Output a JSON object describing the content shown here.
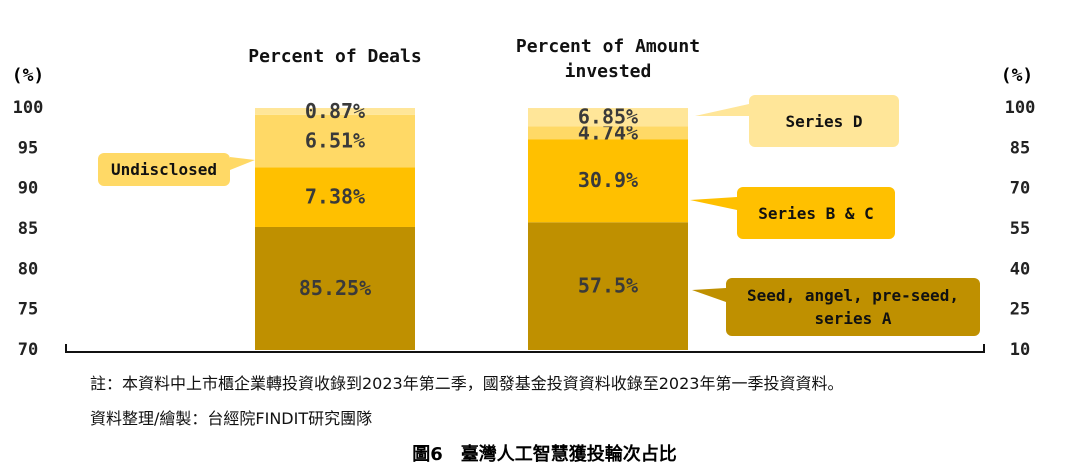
{
  "chart_data": {
    "type": "stacked-bar",
    "categories": [
      "Percent of Deals",
      "Percent of Amount invested"
    ],
    "category_axes": [
      "y",
      "y2"
    ],
    "y_label": "(%)",
    "y2_label": "(%)",
    "ylim": [
      70,
      100
    ],
    "yticks": [
      70,
      75,
      80,
      85,
      90,
      95,
      100
    ],
    "y2lim": [
      10,
      100
    ],
    "y2ticks": [
      10,
      25,
      40,
      55,
      70,
      85,
      100
    ],
    "series": [
      {
        "name": "Seed, angel, pre-seed, series A",
        "color": "#bf9000",
        "values": [
          85.25,
          57.5
        ],
        "value_labels": [
          "85.25%",
          "57.5%"
        ]
      },
      {
        "name": "Series B & C",
        "color": "#ffc000",
        "values": [
          7.38,
          30.9
        ],
        "value_labels": [
          "7.38%",
          "30.9%"
        ]
      },
      {
        "name": "Undisclosed",
        "color": "#ffd966",
        "values": [
          6.51,
          4.74
        ],
        "value_labels": [
          "6.51%",
          "4.74%"
        ]
      },
      {
        "name": "Series D",
        "color": "#ffe699",
        "values": [
          0.87,
          6.85
        ],
        "value_labels": [
          "0.87%",
          "6.85%"
        ]
      }
    ],
    "notes": [
      "註：本資料中上市櫃企業轉投資收錄到2023年第二季，國發基金投資資料收錄至2023年第一季投資資料。",
      "資料整理/繪製：台經院FINDIT研究團隊"
    ],
    "title": "圖6　臺灣人工智慧獲投輪次占比"
  }
}
